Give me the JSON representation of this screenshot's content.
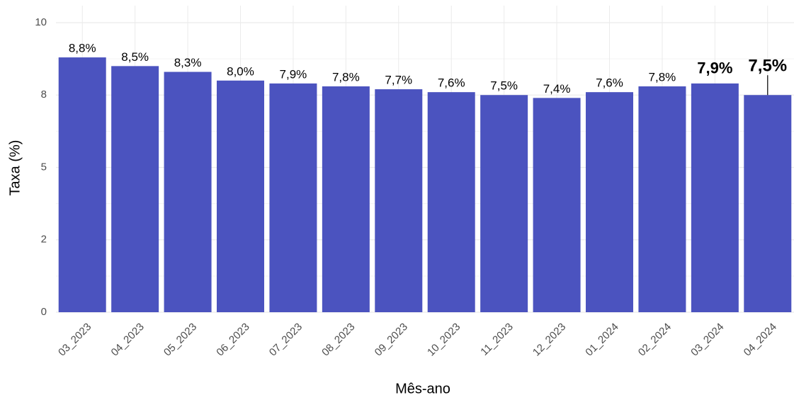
{
  "chart_data": {
    "type": "bar",
    "x_label": "Mês-ano",
    "y_label": "Taxa (%)",
    "categories": [
      "03_2023",
      "04_2023",
      "05_2023",
      "06_2023",
      "07_2023",
      "08_2023",
      "09_2023",
      "10_2023",
      "11_2023",
      "12_2023",
      "01_2024",
      "02_2024",
      "03_2024",
      "04_2024"
    ],
    "values": [
      8.8,
      8.5,
      8.3,
      8.0,
      7.9,
      7.8,
      7.7,
      7.6,
      7.5,
      7.4,
      7.6,
      7.8,
      7.9,
      7.5
    ],
    "value_labels": [
      "8,8%",
      "8,5%",
      "8,3%",
      "8,0%",
      "7,9%",
      "7,8%",
      "7,7%",
      "7,6%",
      "7,5%",
      "7,4%",
      "7,6%",
      "7,8%",
      "7,9%",
      "7,5%"
    ],
    "color": "#4b53bf",
    "ylim": [
      0,
      10
    ],
    "yticks": [
      0,
      {
        "value": 2.5,
        "label": "2"
      },
      5,
      {
        "value": 7.5,
        "label": "8"
      },
      10
    ],
    "grid": true
  }
}
